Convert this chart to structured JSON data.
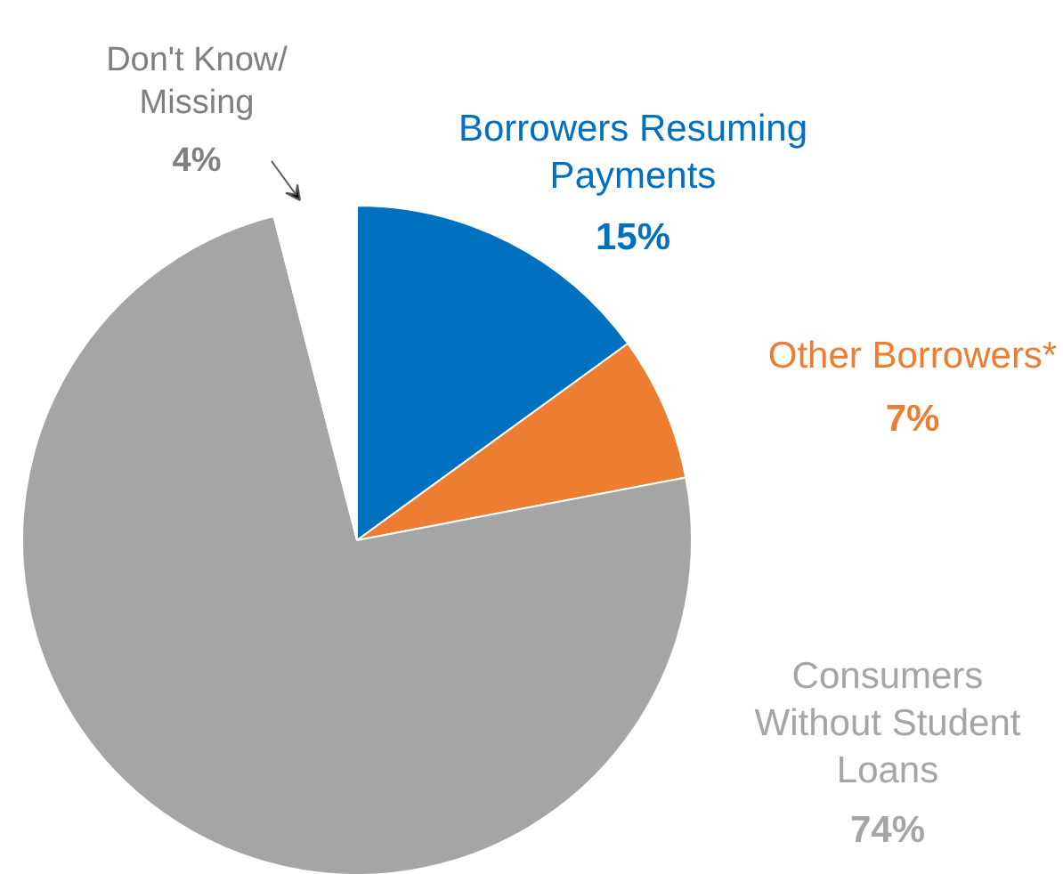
{
  "chart_data": {
    "type": "pie",
    "categories": [
      "Borrowers Resuming\nPayments",
      "Other Borrowers*",
      "Consumers\nWithout Student\nLoans",
      "Don't Know/\nMissing"
    ],
    "values": [
      15,
      7,
      74,
      4
    ],
    "colors": [
      "#0070c0",
      "#ed7d31",
      "#a5a5a5",
      "#ffffff"
    ],
    "value_labels": [
      "15%",
      "7%",
      "74%",
      "4%"
    ]
  }
}
